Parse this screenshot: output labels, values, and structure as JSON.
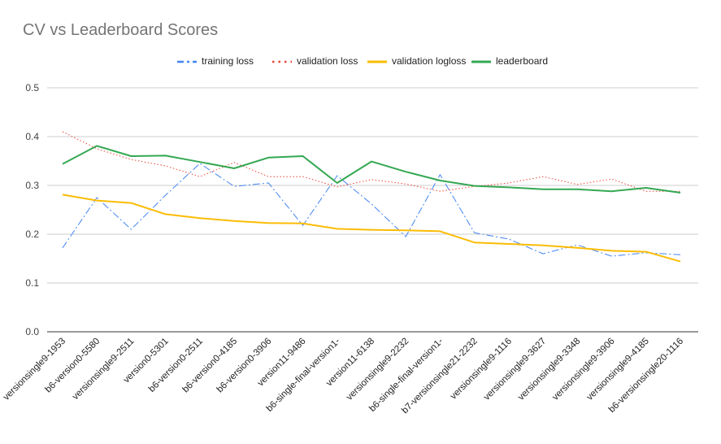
{
  "chart_data": {
    "type": "line",
    "title": "CV vs Leaderboard Scores",
    "xlabel": "",
    "ylabel": "",
    "ylim": [
      0,
      0.5
    ],
    "yticks": [
      "0.0",
      "0.1",
      "0.2",
      "0.3",
      "0.4",
      "0.5"
    ],
    "categories": [
      "versionsingle9-1953",
      "b6-version0-5580",
      "versionsingle9-2511",
      "version0-5301",
      "b6-version0-2511",
      "b6-version0-4185",
      "b6-version0-3906",
      "version11-9486",
      "b6-single-final-version1-",
      "version11-6138",
      "versionsingle9-2232",
      "b6-single-final-version1-",
      "b7-versionsingle21-2232",
      "versionsingle9-1116",
      "versionsingle9-3627",
      "versionsingle9-3348",
      "versionsingle9-3906",
      "versionsingle9-4185",
      "b6-versionsingle20-1116"
    ],
    "series": [
      {
        "name": "training loss",
        "color": "#4285F4",
        "style": "dashdot",
        "values": [
          0.172,
          0.275,
          0.21,
          0.28,
          0.345,
          0.298,
          0.305,
          0.218,
          0.32,
          0.262,
          0.195,
          0.322,
          0.203,
          0.19,
          0.16,
          0.178,
          0.155,
          0.162,
          0.158
        ]
      },
      {
        "name": "validation loss",
        "color": "#EA4335",
        "style": "dotted",
        "values": [
          0.41,
          0.375,
          0.353,
          0.34,
          0.318,
          0.347,
          0.318,
          0.318,
          0.297,
          0.312,
          0.303,
          0.288,
          0.298,
          0.305,
          0.318,
          0.302,
          0.313,
          0.288,
          0.288
        ]
      },
      {
        "name": "validation logloss",
        "color": "#FBBC04",
        "style": "solid",
        "values": [
          0.281,
          0.269,
          0.264,
          0.241,
          0.233,
          0.227,
          0.223,
          0.222,
          0.211,
          0.209,
          0.208,
          0.206,
          0.183,
          0.18,
          0.177,
          0.172,
          0.166,
          0.164,
          0.144
        ]
      },
      {
        "name": "leaderboard",
        "color": "#34A853",
        "style": "solid",
        "values": [
          0.344,
          0.381,
          0.36,
          0.361,
          0.348,
          0.335,
          0.357,
          0.36,
          0.305,
          0.349,
          0.328,
          0.31,
          0.299,
          0.296,
          0.292,
          0.292,
          0.288,
          0.295,
          0.285
        ]
      }
    ]
  }
}
